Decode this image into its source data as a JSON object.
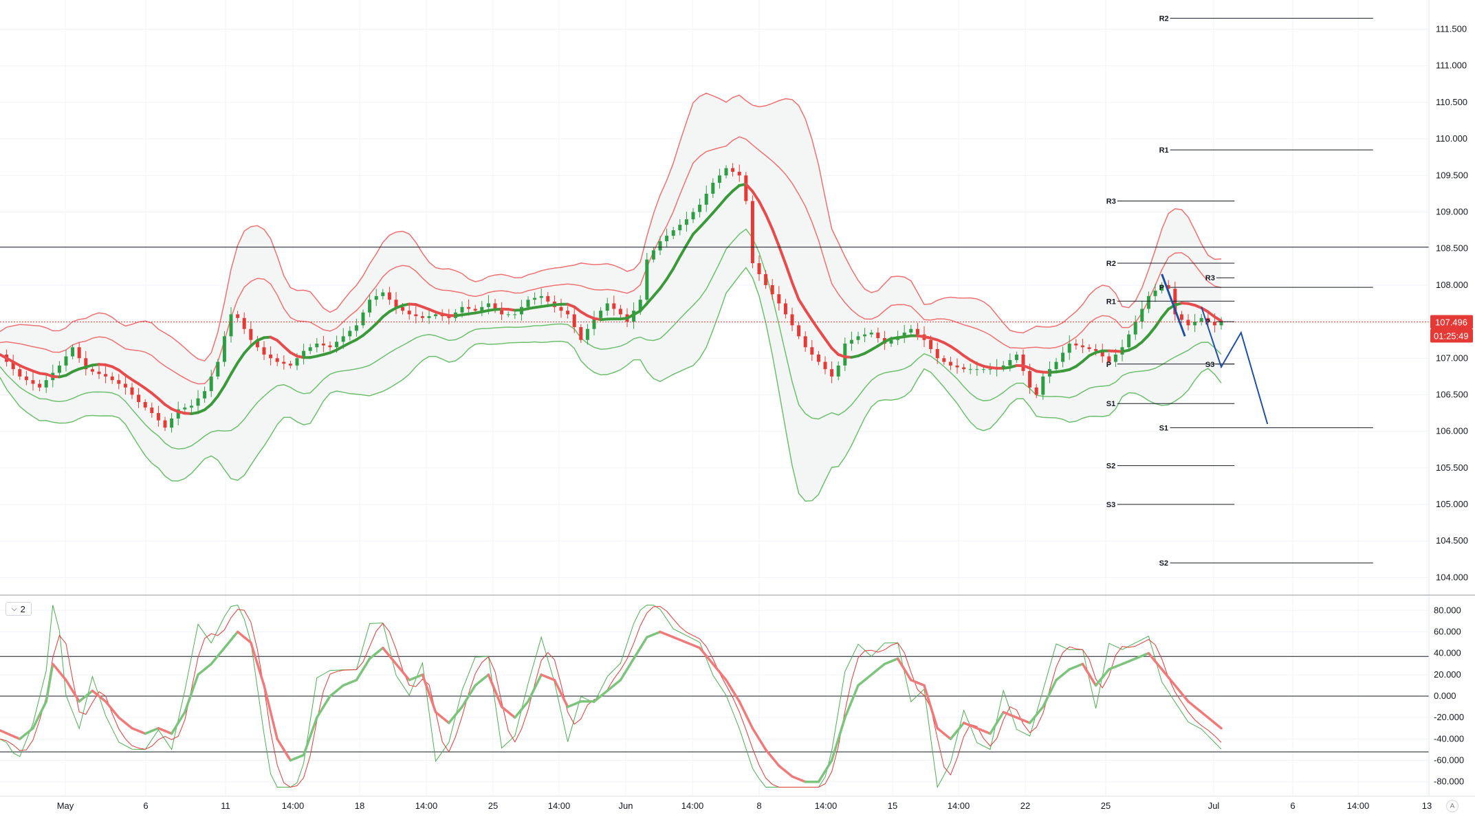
{
  "chart_data": [
    {
      "type": "candlestick",
      "pane": "price",
      "instrument_hint": "USD/JPY",
      "y_ticks": [
        "111.500",
        "111.000",
        "110.500",
        "110.000",
        "109.500",
        "109.000",
        "108.500",
        "108.000",
        "107.500",
        "107.000",
        "106.500",
        "106.000",
        "105.500",
        "105.000",
        "104.500",
        "104.000"
      ],
      "ylim": [
        103.75,
        111.9
      ],
      "x_ticks": [
        "May",
        "6",
        "11",
        "14:00",
        "18",
        "14:00",
        "25",
        "14:00",
        "Jun",
        "14:00",
        "8",
        "14:00",
        "15",
        "14:00",
        "22",
        "25",
        "Jul",
        "6",
        "14:00",
        "13"
      ],
      "last_price": "107.496",
      "countdown": "01:25:49",
      "horizontal_lines": [
        108.52
      ],
      "last_price_line": 107.496,
      "price_path": [
        [
          0,
          107.05
        ],
        [
          3,
          106.75
        ],
        [
          6,
          106.6
        ],
        [
          9,
          106.9
        ],
        [
          11,
          107.15
        ],
        [
          13,
          106.85
        ],
        [
          16,
          106.75
        ],
        [
          19,
          106.6
        ],
        [
          21,
          106.4
        ],
        [
          23,
          106.25
        ],
        [
          25,
          106.05
        ],
        [
          27,
          106.3
        ],
        [
          29,
          106.35
        ],
        [
          31,
          106.55
        ],
        [
          33,
          106.95
        ],
        [
          34,
          107.3
        ],
        [
          35,
          107.6
        ],
        [
          36,
          107.55
        ],
        [
          38,
          107.25
        ],
        [
          40,
          107.05
        ],
        [
          42,
          106.95
        ],
        [
          44,
          106.9
        ],
        [
          46,
          107.1
        ],
        [
          48,
          107.2
        ],
        [
          50,
          107.15
        ],
        [
          52,
          107.3
        ],
        [
          54,
          107.45
        ],
        [
          56,
          107.8
        ],
        [
          58,
          107.9
        ],
        [
          60,
          107.7
        ],
        [
          62,
          107.6
        ],
        [
          64,
          107.55
        ],
        [
          66,
          107.6
        ],
        [
          68,
          107.55
        ],
        [
          70,
          107.7
        ],
        [
          72,
          107.65
        ],
        [
          74,
          107.75
        ],
        [
          76,
          107.6
        ],
        [
          78,
          107.6
        ],
        [
          80,
          107.8
        ],
        [
          82,
          107.85
        ],
        [
          84,
          107.7
        ],
        [
          86,
          107.6
        ],
        [
          88,
          107.25
        ],
        [
          90,
          107.55
        ],
        [
          92,
          107.75
        ],
        [
          94,
          107.6
        ],
        [
          95,
          107.5
        ],
        [
          97,
          107.8
        ],
        [
          98,
          108.35
        ],
        [
          100,
          108.6
        ],
        [
          102,
          108.75
        ],
        [
          104,
          108.9
        ],
        [
          106,
          109.1
        ],
        [
          108,
          109.4
        ],
        [
          110,
          109.6
        ],
        [
          112,
          109.5
        ],
        [
          113,
          109.15
        ],
        [
          114,
          108.3
        ],
        [
          116,
          108.0
        ],
        [
          118,
          107.75
        ],
        [
          120,
          107.45
        ],
        [
          122,
          107.15
        ],
        [
          124,
          106.95
        ],
        [
          126,
          106.75
        ],
        [
          127,
          106.9
        ],
        [
          128,
          107.2
        ],
        [
          130,
          107.3
        ],
        [
          132,
          107.35
        ],
        [
          134,
          107.2
        ],
        [
          136,
          107.3
        ],
        [
          138,
          107.4
        ],
        [
          140,
          107.25
        ],
        [
          142,
          107.0
        ],
        [
          144,
          106.9
        ],
        [
          146,
          106.85
        ],
        [
          148,
          106.85
        ],
        [
          150,
          106.85
        ],
        [
          152,
          106.9
        ],
        [
          154,
          107.05
        ],
        [
          156,
          106.6
        ],
        [
          157,
          106.5
        ],
        [
          158,
          106.75
        ],
        [
          160,
          106.95
        ],
        [
          162,
          107.2
        ],
        [
          164,
          107.15
        ],
        [
          166,
          107.1
        ],
        [
          168,
          106.95
        ],
        [
          170,
          107.15
        ],
        [
          172,
          107.5
        ],
        [
          174,
          107.85
        ],
        [
          176,
          108.0
        ],
        [
          177,
          107.95
        ],
        [
          178,
          107.6
        ],
        [
          180,
          107.45
        ],
        [
          182,
          107.55
        ],
        [
          184,
          107.45
        ],
        [
          185,
          107.5
        ]
      ],
      "pivot_levels": [
        {
          "label": "R2",
          "price": 111.65,
          "from": 176,
          "to": 208
        },
        {
          "label": "R1",
          "price": 109.85,
          "from": 176,
          "to": 208
        },
        {
          "label": "R3",
          "price": 109.15,
          "from": 168,
          "to": 187
        },
        {
          "label": "R2",
          "price": 108.3,
          "from": 168,
          "to": 187
        },
        {
          "label": "R1",
          "price": 107.78,
          "from": 168,
          "to": 187
        },
        {
          "label": "P",
          "price": 107.97,
          "from": 176,
          "to": 208
        },
        {
          "label": "R3",
          "price": 108.1,
          "from": 183,
          "to": 187
        },
        {
          "label": "P",
          "price": 107.5,
          "from": 183,
          "to": 187
        },
        {
          "label": "P",
          "price": 106.92,
          "from": 168,
          "to": 187
        },
        {
          "label": "S3",
          "price": 106.92,
          "from": 183,
          "to": 187
        },
        {
          "label": "S1",
          "price": 106.38,
          "from": 168,
          "to": 187
        },
        {
          "label": "S1",
          "price": 106.05,
          "from": 176,
          "to": 208
        },
        {
          "label": "S2",
          "price": 105.53,
          "from": 168,
          "to": 187
        },
        {
          "label": "S3",
          "price": 105.0,
          "from": 168,
          "to": 187
        },
        {
          "label": "S2",
          "price": 104.2,
          "from": 176,
          "to": 208
        }
      ],
      "projection_path": [
        [
          176,
          108.15
        ],
        [
          179.5,
          107.3
        ]
      ],
      "projection_path_2": [
        [
          182,
          107.7
        ],
        [
          185,
          106.88
        ],
        [
          188,
          107.35
        ],
        [
          192,
          106.1
        ]
      ]
    },
    {
      "type": "line",
      "pane": "oscillator",
      "pane_label": "2",
      "y_ticks": [
        "80.000",
        "60.000",
        "40.000",
        "20.000",
        "0.000",
        "-20.000",
        "-40.000",
        "-60.000",
        "-80.000"
      ],
      "ylim": [
        -93,
        93
      ],
      "levels": [
        37,
        0,
        -52
      ],
      "osc_path": [
        [
          0,
          -32
        ],
        [
          3,
          -40
        ],
        [
          5,
          -30
        ],
        [
          7,
          -5
        ],
        [
          8,
          30
        ],
        [
          10,
          15
        ],
        [
          12,
          -5
        ],
        [
          14,
          5
        ],
        [
          16,
          -5
        ],
        [
          18,
          -20
        ],
        [
          20,
          -30
        ],
        [
          22,
          -35
        ],
        [
          24,
          -30
        ],
        [
          26,
          -35
        ],
        [
          28,
          -15
        ],
        [
          30,
          20
        ],
        [
          32,
          30
        ],
        [
          34,
          45
        ],
        [
          36,
          60
        ],
        [
          38,
          50
        ],
        [
          40,
          10
        ],
        [
          42,
          -40
        ],
        [
          44,
          -60
        ],
        [
          46,
          -55
        ],
        [
          48,
          -20
        ],
        [
          50,
          0
        ],
        [
          52,
          10
        ],
        [
          54,
          15
        ],
        [
          56,
          35
        ],
        [
          58,
          45
        ],
        [
          60,
          30
        ],
        [
          62,
          15
        ],
        [
          64,
          20
        ],
        [
          66,
          -15
        ],
        [
          68,
          -25
        ],
        [
          70,
          -10
        ],
        [
          72,
          10
        ],
        [
          74,
          20
        ],
        [
          76,
          -10
        ],
        [
          78,
          -20
        ],
        [
          80,
          -5
        ],
        [
          82,
          20
        ],
        [
          84,
          15
        ],
        [
          86,
          -10
        ],
        [
          88,
          -5
        ],
        [
          90,
          -5
        ],
        [
          92,
          5
        ],
        [
          94,
          15
        ],
        [
          96,
          35
        ],
        [
          98,
          55
        ],
        [
          100,
          60
        ],
        [
          102,
          55
        ],
        [
          104,
          50
        ],
        [
          106,
          45
        ],
        [
          108,
          30
        ],
        [
          110,
          15
        ],
        [
          112,
          -5
        ],
        [
          114,
          -30
        ],
        [
          116,
          -50
        ],
        [
          118,
          -65
        ],
        [
          120,
          -75
        ],
        [
          122,
          -80
        ],
        [
          124,
          -80
        ],
        [
          126,
          -60
        ],
        [
          128,
          -20
        ],
        [
          130,
          10
        ],
        [
          132,
          20
        ],
        [
          134,
          30
        ],
        [
          136,
          35
        ],
        [
          138,
          15
        ],
        [
          140,
          10
        ],
        [
          142,
          -30
        ],
        [
          144,
          -40
        ],
        [
          146,
          -25
        ],
        [
          148,
          -30
        ],
        [
          150,
          -35
        ],
        [
          152,
          -15
        ],
        [
          154,
          -20
        ],
        [
          156,
          -25
        ],
        [
          158,
          -10
        ],
        [
          160,
          15
        ],
        [
          162,
          25
        ],
        [
          164,
          30
        ],
        [
          166,
          10
        ],
        [
          168,
          25
        ],
        [
          170,
          30
        ],
        [
          172,
          35
        ],
        [
          174,
          40
        ],
        [
          176,
          25
        ],
        [
          178,
          10
        ],
        [
          180,
          -5
        ],
        [
          182,
          -15
        ],
        [
          184,
          -25
        ],
        [
          185,
          -30
        ]
      ]
    }
  ]
}
